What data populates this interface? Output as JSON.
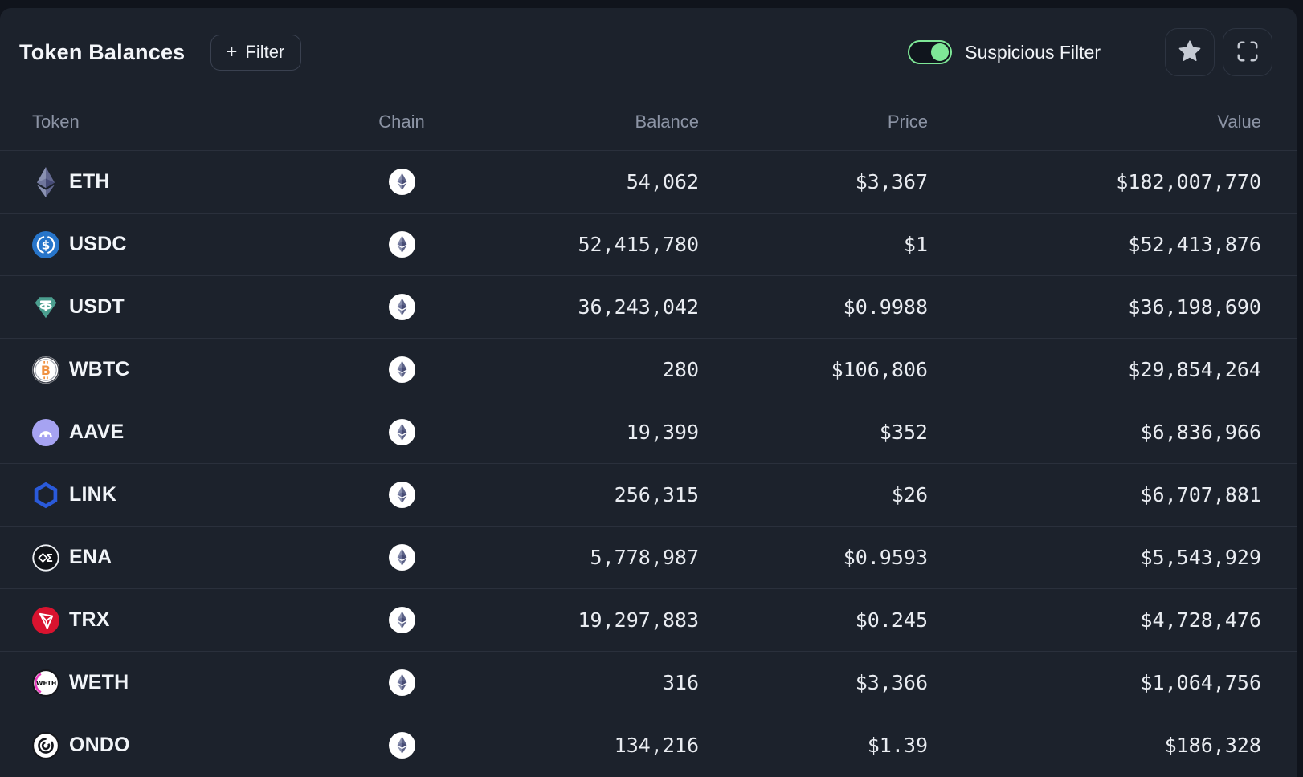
{
  "panel": {
    "title": "Token Balances",
    "filter_button": {
      "icon": "plus-icon",
      "label": "Filter"
    },
    "suspicious_filter_label": "Suspicious Filter",
    "suspicious_filter_on": true
  },
  "table": {
    "columns": [
      "Token",
      "Chain",
      "Balance",
      "Price",
      "Value"
    ],
    "rows": [
      {
        "token": "ETH",
        "token_icon": "eth-token-icon",
        "chain": "Ethereum",
        "chain_icon": "ethereum-chain-icon",
        "balance": "54,062",
        "price": "$3,367",
        "value": "$182,007,770"
      },
      {
        "token": "USDC",
        "token_icon": "usdc-token-icon",
        "chain": "Ethereum",
        "chain_icon": "ethereum-chain-icon",
        "balance": "52,415,780",
        "price": "$1",
        "value": "$52,413,876"
      },
      {
        "token": "USDT",
        "token_icon": "usdt-token-icon",
        "chain": "Ethereum",
        "chain_icon": "ethereum-chain-icon",
        "balance": "36,243,042",
        "price": "$0.9988",
        "value": "$36,198,690"
      },
      {
        "token": "WBTC",
        "token_icon": "wbtc-token-icon",
        "chain": "Ethereum",
        "chain_icon": "ethereum-chain-icon",
        "balance": "280",
        "price": "$106,806",
        "value": "$29,854,264"
      },
      {
        "token": "AAVE",
        "token_icon": "aave-token-icon",
        "chain": "Ethereum",
        "chain_icon": "ethereum-chain-icon",
        "balance": "19,399",
        "price": "$352",
        "value": "$6,836,966"
      },
      {
        "token": "LINK",
        "token_icon": "link-token-icon",
        "chain": "Ethereum",
        "chain_icon": "ethereum-chain-icon",
        "balance": "256,315",
        "price": "$26",
        "value": "$6,707,881"
      },
      {
        "token": "ENA",
        "token_icon": "ena-token-icon",
        "chain": "Ethereum",
        "chain_icon": "ethereum-chain-icon",
        "balance": "5,778,987",
        "price": "$0.9593",
        "value": "$5,543,929"
      },
      {
        "token": "TRX",
        "token_icon": "trx-token-icon",
        "chain": "Ethereum",
        "chain_icon": "ethereum-chain-icon",
        "balance": "19,297,883",
        "price": "$0.245",
        "value": "$4,728,476"
      },
      {
        "token": "WETH",
        "token_icon": "weth-token-icon",
        "chain": "Ethereum",
        "chain_icon": "ethereum-chain-icon",
        "balance": "316",
        "price": "$3,366",
        "value": "$1,064,756"
      },
      {
        "token": "ONDO",
        "token_icon": "ondo-token-icon",
        "chain": "Ethereum",
        "chain_icon": "ethereum-chain-icon",
        "balance": "134,216",
        "price": "$1.39",
        "value": "$186,328"
      }
    ]
  },
  "colors": {
    "page_bg": "#10141c",
    "card_bg": "#1c222c",
    "divider": "#2a303c",
    "accent_green": "#7ee797",
    "muted_header_text": "#8c94a5",
    "number_text": "#e9ecf1",
    "usdc_blue": "#2775ca",
    "usdt_teal": "#4b9e8f",
    "wbtc_orange": "#f09242",
    "aave_lavender": "#a6a3f2",
    "link_blue": "#2a5ada",
    "trx_red": "#d9132f",
    "weth_pink": "#e93cbe"
  }
}
